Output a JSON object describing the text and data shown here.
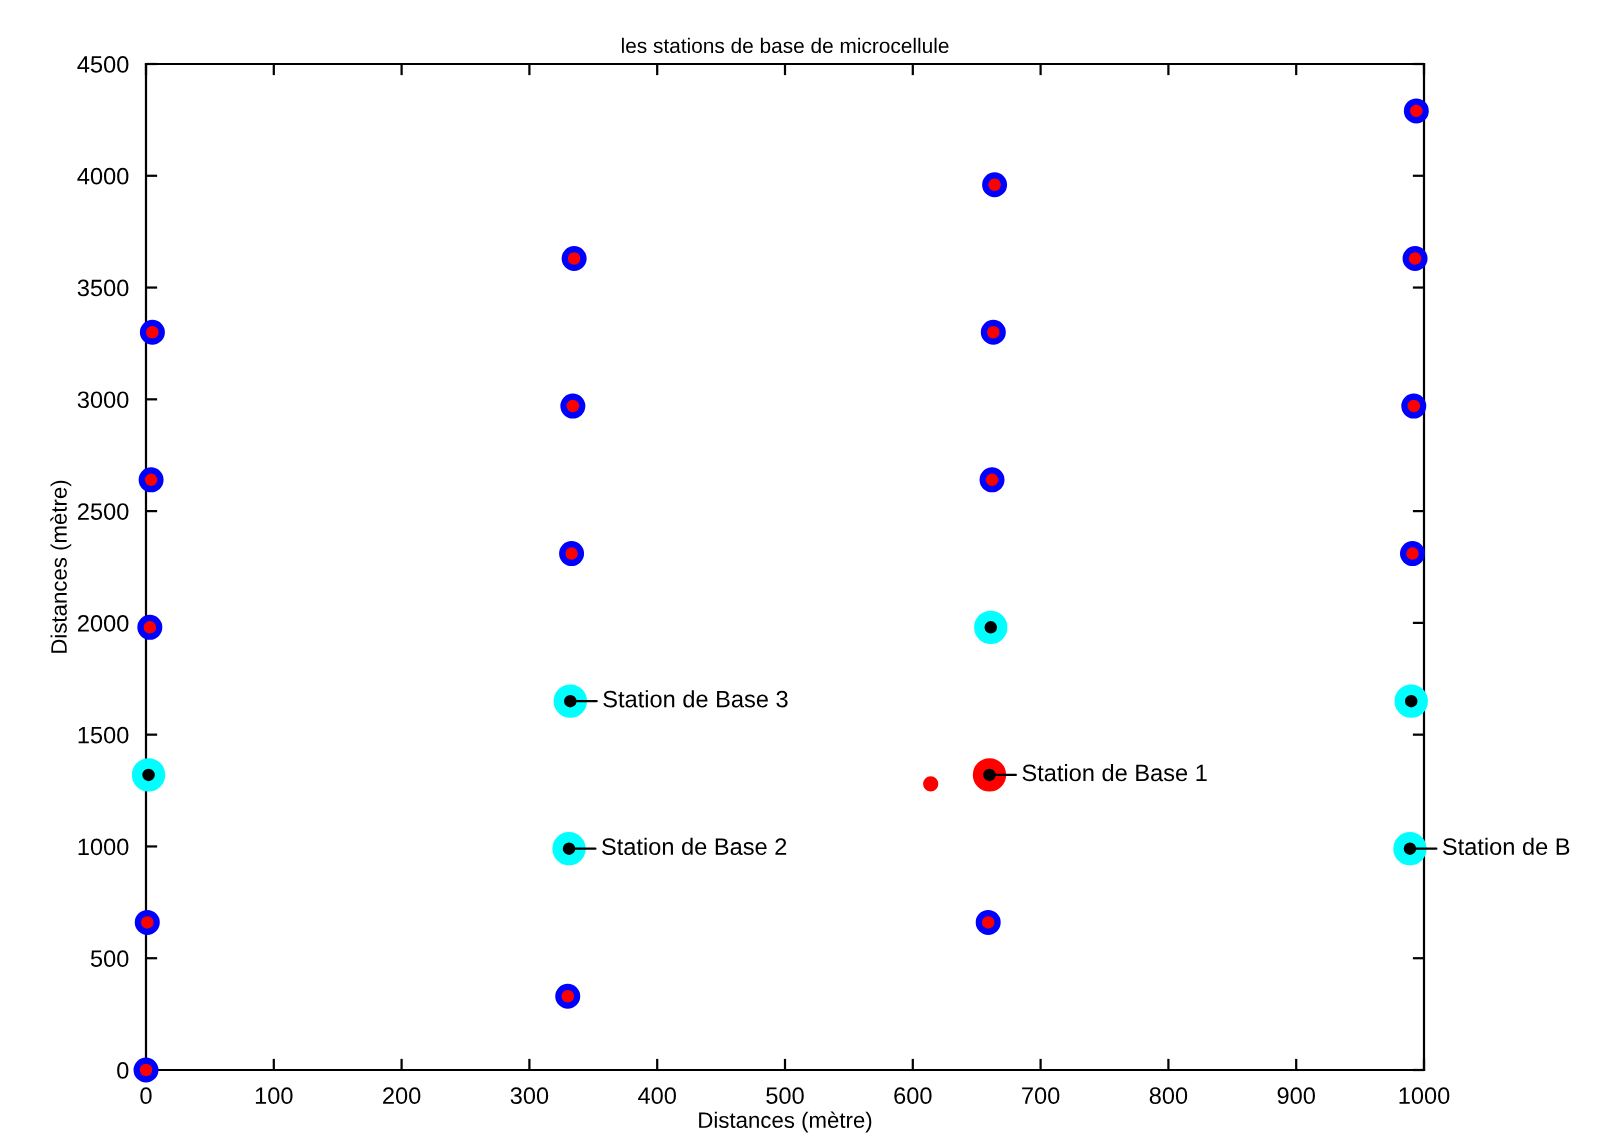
{
  "chart_data": {
    "type": "scatter",
    "title": "les stations de base de microcellule",
    "xlabel": "Distances (mètre)",
    "ylabel": "Distances (mètre)",
    "xlim": [
      0,
      1000
    ],
    "ylim": [
      0,
      4500
    ],
    "xticks": [
      0,
      100,
      200,
      300,
      400,
      500,
      600,
      700,
      800,
      900,
      1000
    ],
    "yticks": [
      0,
      500,
      1000,
      1500,
      2000,
      2500,
      3000,
      3500,
      4000,
      4500
    ],
    "grid": false,
    "legend": false,
    "marker": "circle",
    "series": [
      {
        "color": "#0000ff",
        "x": [
          0,
          1,
          3,
          4,
          5,
          330,
          333,
          334,
          335,
          659,
          662,
          663,
          664,
          991,
          992,
          993,
          994
        ],
        "values": [
          0,
          660,
          1980,
          2640,
          3300,
          330,
          2310,
          2970,
          3630,
          660,
          2640,
          3300,
          3960,
          2310,
          2970,
          3630,
          4290
        ]
      },
      {
        "color": "#ff0000",
        "x": [
          0,
          1,
          3,
          4,
          5,
          330,
          333,
          334,
          335,
          659,
          662,
          663,
          664,
          991,
          992,
          993,
          994
        ],
        "values": [
          0,
          660,
          1980,
          2640,
          3300,
          330,
          2310,
          2970,
          3630,
          660,
          2640,
          3300,
          3960,
          2310,
          2970,
          3630,
          4290
        ]
      },
      {
        "color": "#00ffff",
        "x": [
          2,
          331,
          332,
          661,
          989,
          990
        ],
        "values": [
          1320,
          990,
          1650,
          1980,
          990,
          1650
        ]
      },
      {
        "color": "#ff0000",
        "x": [
          660
        ],
        "values": [
          1320
        ]
      },
      {
        "color": "#000000",
        "x": [
          2,
          331,
          332,
          661,
          989,
          990,
          660
        ],
        "values": [
          1320,
          990,
          1650,
          1980,
          990,
          1650,
          1320
        ]
      },
      {
        "color": "#ff0000",
        "x": [
          614
        ],
        "values": [
          1280
        ]
      }
    ],
    "annotations": [
      {
        "text": "Station de Base 3",
        "x": 332,
        "y": 1650
      },
      {
        "text": "Station de Base 2",
        "x": 331,
        "y": 990
      },
      {
        "text": "Station de Base 1",
        "x": 660,
        "y": 1320
      },
      {
        "text": "Station de B",
        "x": 989,
        "y": 990
      }
    ]
  }
}
